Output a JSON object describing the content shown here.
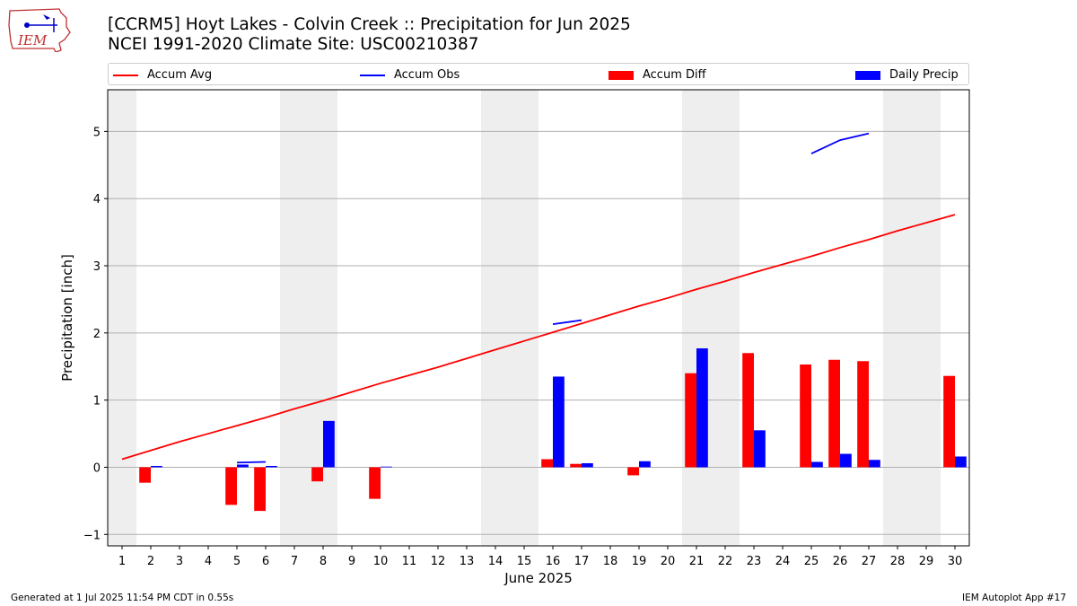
{
  "header": {
    "title_line1": "[CCRM5] Hoyt Lakes - Colvin Creek :: Precipitation for Jun 2025",
    "title_line2": "NCEI 1991-2020 Climate Site: USC00210387",
    "logo_text": "IEM",
    "logo_icon": "iem-iowa-logo"
  },
  "footer": {
    "left": "Generated at 1 Jul 2025 11:54 PM CDT in 0.55s",
    "right": "IEM Autoplot App #17"
  },
  "chart_data": {
    "type": "bar",
    "xlabel": "June 2025",
    "ylabel": "Precipitation [inch]",
    "ylim": [
      -1.17,
      5.62
    ],
    "xlim": [
      0.5,
      30.5
    ],
    "yticks": [
      -1,
      0,
      1,
      2,
      3,
      4,
      5
    ],
    "categories": [
      "1",
      "2",
      "3",
      "4",
      "5",
      "6",
      "7",
      "8",
      "9",
      "10",
      "11",
      "12",
      "13",
      "14",
      "15",
      "16",
      "17",
      "18",
      "19",
      "20",
      "21",
      "22",
      "23",
      "24",
      "25",
      "26",
      "27",
      "28",
      "29",
      "30"
    ],
    "weekend_shading": [
      [
        0.5,
        1.5
      ],
      [
        6.5,
        8.5
      ],
      [
        13.5,
        15.5
      ],
      [
        20.5,
        22.5
      ],
      [
        27.5,
        29.5
      ]
    ],
    "grid": "y",
    "legend_placement": "top, above plot",
    "colors": {
      "avg": "#ff0000",
      "obs": "#0000ff",
      "diff": "#ff0000",
      "daily": "#0000ff",
      "shade": "#eeeeee",
      "grid": "#b0b0b0"
    },
    "series": [
      {
        "name": "Accum Avg",
        "type": "line",
        "values": [
          0.12,
          0.25,
          0.38,
          0.5,
          0.62,
          0.74,
          0.87,
          0.99,
          1.12,
          1.25,
          1.37,
          1.49,
          1.62,
          1.75,
          1.88,
          2.01,
          2.14,
          2.27,
          2.4,
          2.52,
          2.65,
          2.77,
          2.9,
          3.02,
          3.14,
          3.27,
          3.39,
          3.52,
          3.64,
          3.76
        ]
      },
      {
        "name": "Accum Obs",
        "type": "line",
        "values": [
          null,
          null,
          null,
          null,
          0.07,
          0.08,
          null,
          null,
          null,
          null,
          null,
          null,
          null,
          null,
          null,
          2.13,
          2.19,
          null,
          null,
          null,
          null,
          null,
          null,
          null,
          4.67,
          4.87,
          4.97,
          null,
          null,
          null
        ]
      },
      {
        "name": "Accum Diff",
        "type": "bar",
        "values": [
          null,
          -0.23,
          null,
          null,
          -0.56,
          -0.65,
          null,
          -0.21,
          null,
          -0.47,
          null,
          null,
          null,
          null,
          null,
          0.12,
          0.05,
          null,
          -0.12,
          null,
          1.4,
          null,
          1.7,
          null,
          1.53,
          1.6,
          1.58,
          null,
          null,
          1.36
        ]
      },
      {
        "name": "Daily Precip",
        "type": "bar",
        "values": [
          null,
          0.02,
          null,
          null,
          0.04,
          0.02,
          null,
          0.69,
          null,
          0.01,
          null,
          null,
          null,
          null,
          null,
          1.35,
          0.06,
          null,
          0.09,
          null,
          1.77,
          null,
          0.55,
          null,
          0.08,
          0.2,
          0.11,
          null,
          null,
          0.16
        ]
      }
    ]
  }
}
